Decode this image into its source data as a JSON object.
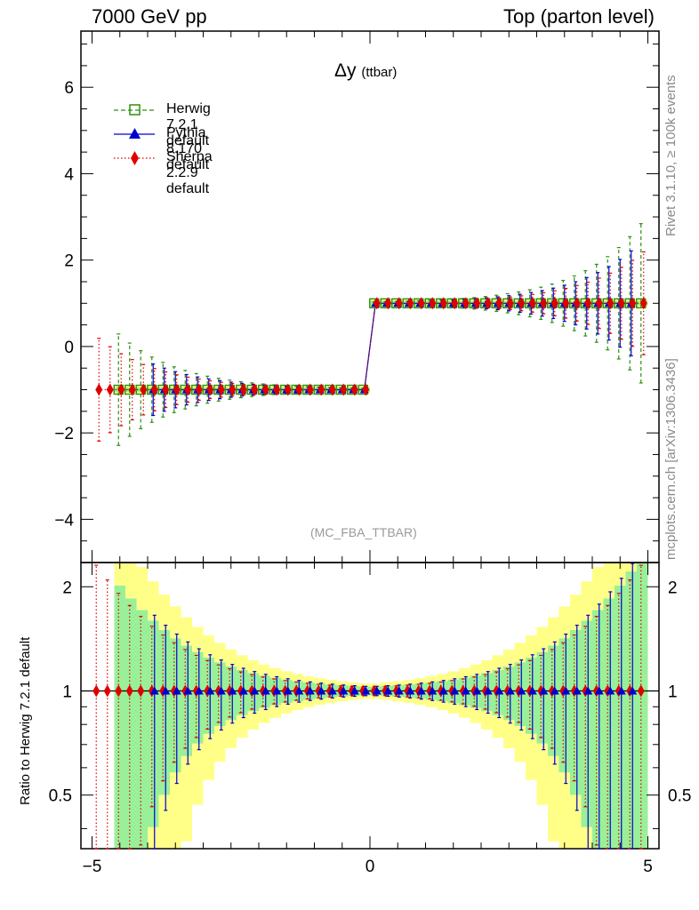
{
  "header": {
    "energy_label": "7000 GeV pp",
    "process_label": "Top (parton level)"
  },
  "side": {
    "rivet_label": "Rivet 3.1.10, ≥ 100k events",
    "mcplots_label": "mcplots.cern.ch [arXiv:1306.3436]"
  },
  "plot": {
    "title": "Δy",
    "title_sub": "(ttbar)",
    "analysis_label": "(MC_FBA_TTBAR)"
  },
  "legend": [
    {
      "name": "Herwig 7.2.1 default",
      "color": "#2f8f10",
      "marker": "square-open",
      "line": "dashed"
    },
    {
      "name": "Pythia 8.170 default",
      "color": "#0000d0",
      "marker": "triangle",
      "line": "solid"
    },
    {
      "name": "Sherpa 2.2.9 default",
      "color": "#e00000",
      "marker": "diamond",
      "line": "dotted"
    }
  ],
  "chart_data": {
    "type": "line",
    "title": "Δy (ttbar)",
    "xlabel": "",
    "ylabel": "",
    "xlim": [
      -5.2,
      5.2
    ],
    "ylim": [
      -5,
      7.3
    ],
    "xticks": [
      -5,
      0,
      5
    ],
    "xtick_labels": [
      "−5",
      "0",
      "5"
    ],
    "yticks": [
      -4,
      -2,
      0,
      2,
      4,
      6
    ],
    "ytick_labels": [
      "−4",
      "−2",
      "0",
      "2",
      "4",
      "6"
    ],
    "bin_width": 0.2,
    "bin_min": -5.0,
    "bin_max": 5.0,
    "series": [
      {
        "name": "Herwig 7.2.1 default",
        "x_from": -4.6,
        "x_to": 5.0,
        "values_neg": -1,
        "values_pos": 1
      },
      {
        "name": "Pythia 8.170 default",
        "x_from": -4.0,
        "x_to": 4.8,
        "values_neg": -1,
        "values_pos": 1
      },
      {
        "name": "Sherpa 2.2.9 default",
        "x_from": -4.9,
        "x_to": 5.0,
        "values_neg": -1,
        "values_pos": 1
      }
    ],
    "ratio": {
      "ylabel": "Ratio to Herwig 7.2.1 default",
      "ylim": [
        0.35,
        2.35
      ],
      "ytick_labels": [
        "0.5",
        "1",
        "2"
      ],
      "yticks": [
        0.5,
        1,
        2
      ],
      "reference": 1
    }
  }
}
